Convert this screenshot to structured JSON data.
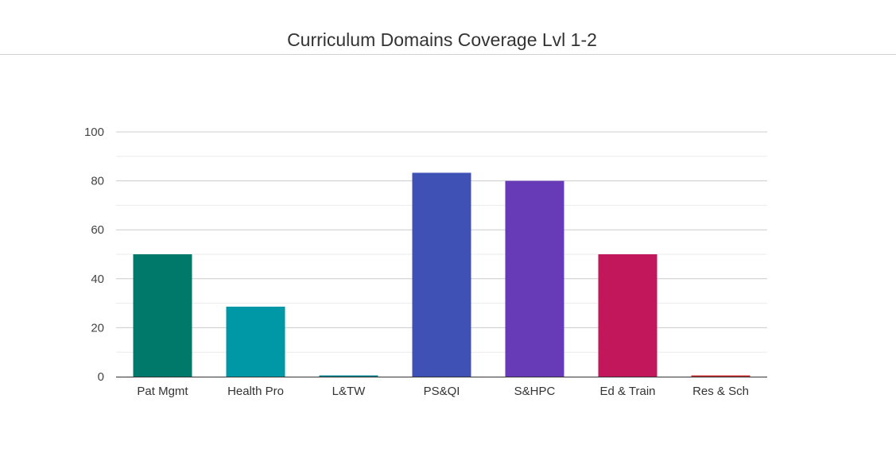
{
  "chart_data": {
    "type": "bar",
    "title": "Curriculum Domains Coverage Lvl 1-2",
    "xlabel": "",
    "ylabel": "",
    "categories": [
      "Pat Mgmt",
      "Health Pro",
      "L&TW",
      "PS&QI",
      "S&HPC",
      "Ed & Train",
      "Res & Sch"
    ],
    "values": [
      50,
      28.6,
      0,
      83.3,
      80,
      50,
      0
    ],
    "colors": [
      "#00796b",
      "#0097a7",
      "#00838f",
      "#3f51b5",
      "#673ab7",
      "#c2185b",
      "#c62828"
    ],
    "ylim": [
      0,
      100
    ],
    "yticks": [
      "0",
      "20",
      "40",
      "60",
      "80",
      "100"
    ],
    "grid": true,
    "legend": "none"
  }
}
